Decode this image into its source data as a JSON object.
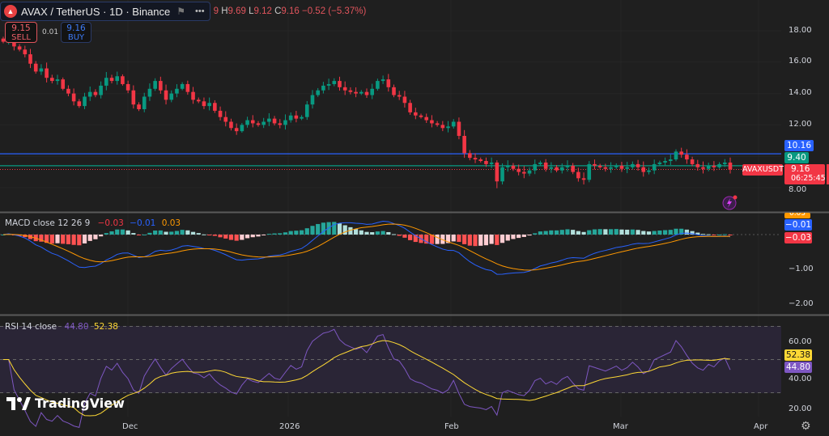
{
  "header": {
    "symbol_title": "AVAX / TetherUS · 1D · Binance",
    "open_fragment": "9",
    "high_label": "H",
    "high": "9.69",
    "low_label": "L",
    "low": "9.12",
    "close_label": "C",
    "close": "9.16",
    "change": "−0.52 (−5.37%)"
  },
  "trade": {
    "sell_price": "9.15",
    "sell_label": "SELL",
    "spread": "0.01",
    "buy_price": "9.16",
    "buy_label": "BUY"
  },
  "price_axis": {
    "ticks": [
      "18.00",
      "16.00",
      "14.00",
      "12.00",
      "8.00"
    ],
    "levels": [
      {
        "value": "10.16",
        "color": "#2962ff"
      },
      {
        "value": "9.40",
        "color": "#089981"
      }
    ],
    "symbol_tag": "AVAXUSDT",
    "last_price": "9.16",
    "countdown": "06:25:45"
  },
  "macd": {
    "legend": "MACD close 12 26 9",
    "hist": "−0.03",
    "macd": "−0.01",
    "signal": "0.03",
    "ticks": [
      "−1.00",
      "−2.00"
    ],
    "tags": {
      "signal": "0.03",
      "macd": "−0.01",
      "hist": "−0.03"
    }
  },
  "rsi": {
    "legend": "RSI 14 close",
    "rsi": "44.80",
    "ma": "52.38",
    "ticks": [
      "60.00",
      "40.00",
      "20.00"
    ],
    "tags": {
      "ma": "52.38",
      "rsi": "44.80"
    }
  },
  "time_axis": {
    "ticks": [
      "Dec",
      "2026",
      "Feb",
      "Mar",
      "Apr"
    ]
  },
  "branding": {
    "logo_text": "TradingView"
  },
  "colors": {
    "up": "#089981",
    "down": "#f23645",
    "macd": "#2962ff",
    "signal": "#ff9800",
    "rsi": "#7e57c2",
    "rsi_ma": "#fdd835"
  },
  "chart_data": {
    "type": "candlestick",
    "interval": "1D",
    "closes": [
      17.3,
      17.6,
      17.0,
      16.8,
      16.5,
      15.9,
      15.4,
      15.6,
      15.0,
      14.8,
      14.9,
      14.3,
      14.0,
      13.5,
      13.2,
      13.8,
      14.1,
      13.9,
      14.5,
      15.0,
      14.8,
      15.1,
      14.6,
      14.2,
      13.3,
      13.0,
      13.8,
      14.3,
      14.8,
      14.2,
      13.6,
      14.0,
      14.3,
      14.6,
      14.1,
      13.6,
      13.5,
      13.2,
      13.4,
      12.9,
      12.5,
      12.2,
      11.8,
      11.6,
      12.0,
      12.3,
      12.1,
      12.0,
      12.2,
      12.4,
      12.1,
      12.0,
      12.3,
      12.6,
      12.4,
      12.5,
      13.3,
      13.9,
      14.2,
      14.5,
      14.6,
      14.8,
      14.4,
      14.2,
      14.1,
      14.0,
      14.1,
      13.9,
      14.3,
      14.8,
      14.9,
      14.4,
      13.9,
      13.8,
      13.4,
      12.8,
      12.6,
      12.5,
      12.3,
      12.1,
      12.0,
      11.8,
      11.9,
      12.2,
      11.3,
      10.2,
      9.9,
      9.8,
      9.7,
      9.5,
      9.6,
      8.4,
      9.3,
      9.4,
      9.2,
      9.0,
      8.9,
      9.1,
      9.5,
      9.6,
      9.2,
      9.3,
      9.1,
      9.3,
      9.4,
      9.0,
      8.6,
      8.5,
      9.5,
      9.4,
      9.3,
      9.2,
      9.3,
      9.4,
      9.2,
      9.3,
      9.5,
      9.3,
      9.0,
      9.1,
      9.5,
      9.6,
      9.7,
      9.8,
      10.3,
      10.1,
      9.8,
      9.5,
      9.3,
      9.2,
      9.4,
      9.3,
      9.5,
      9.6,
      9.16
    ],
    "price_range": [
      7.5,
      19.0
    ],
    "macd_range": [
      -2.3,
      0.3
    ],
    "rsi_range": [
      15,
      75
    ],
    "rsi_bands": [
      70,
      30
    ]
  }
}
